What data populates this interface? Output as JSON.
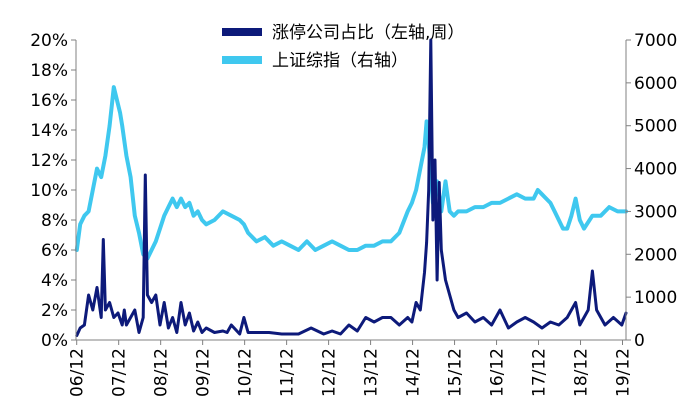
{
  "chart_data": {
    "type": "line",
    "title": "",
    "xlabel": "",
    "x_ticks": [
      "06/12",
      "07/12",
      "08/12",
      "09/12",
      "10/12",
      "11/12",
      "12/12",
      "13/12",
      "14/12",
      "15/12",
      "16/12",
      "17/12",
      "18/12",
      "19/12"
    ],
    "x_range": [
      2006.9,
      2020.0
    ],
    "y_left": {
      "label": "",
      "range": [
        0,
        20
      ],
      "ticks": [
        0,
        2,
        4,
        6,
        8,
        10,
        12,
        14,
        16,
        18,
        20
      ],
      "tick_labels": [
        "0%",
        "2%",
        "4%",
        "6%",
        "8%",
        "10%",
        "12%",
        "14%",
        "16%",
        "18%",
        "20%"
      ]
    },
    "y_right": {
      "label": "",
      "range": [
        0,
        7000
      ],
      "ticks": [
        0,
        1000,
        2000,
        3000,
        4000,
        5000,
        6000,
        7000
      ],
      "tick_labels": [
        "0",
        "1000",
        "2000",
        "3000",
        "4000",
        "5000",
        "6000",
        "7000"
      ]
    },
    "legend_position": "top-center",
    "series": [
      {
        "name": "涨停公司占比（左轴,周）",
        "axis": "left",
        "color": "#0d1a7a",
        "x": [
          2006.92,
          2007.0,
          2007.1,
          2007.2,
          2007.3,
          2007.4,
          2007.5,
          2007.55,
          2007.6,
          2007.7,
          2007.8,
          2007.9,
          2008.0,
          2008.05,
          2008.1,
          2008.2,
          2008.3,
          2008.4,
          2008.5,
          2008.55,
          2008.6,
          2008.7,
          2008.8,
          2008.9,
          2009.0,
          2009.1,
          2009.2,
          2009.3,
          2009.4,
          2009.5,
          2009.6,
          2009.7,
          2009.8,
          2009.9,
          2010.0,
          2010.2,
          2010.4,
          2010.5,
          2010.6,
          2010.8,
          2010.9,
          2011.0,
          2011.2,
          2011.5,
          2011.8,
          2012.0,
          2012.2,
          2012.5,
          2012.8,
          2013.0,
          2013.2,
          2013.4,
          2013.6,
          2013.8,
          2014.0,
          2014.2,
          2014.4,
          2014.6,
          2014.8,
          2014.9,
          2015.0,
          2015.1,
          2015.2,
          2015.25,
          2015.3,
          2015.35,
          2015.4,
          2015.45,
          2015.5,
          2015.55,
          2015.6,
          2015.7,
          2015.8,
          2015.9,
          2016.0,
          2016.2,
          2016.4,
          2016.6,
          2016.8,
          2017.0,
          2017.2,
          2017.4,
          2017.6,
          2017.8,
          2018.0,
          2018.2,
          2018.4,
          2018.6,
          2018.8,
          2018.9,
          2019.0,
          2019.1,
          2019.2,
          2019.3,
          2019.5,
          2019.7,
          2019.9,
          2020.0
        ],
        "values": [
          0.3,
          0.8,
          1.0,
          3.0,
          2.0,
          3.5,
          1.5,
          6.7,
          2.0,
          2.5,
          1.5,
          1.8,
          1.0,
          2.0,
          1.0,
          1.5,
          2.0,
          0.5,
          1.5,
          11.0,
          3.0,
          2.5,
          3.0,
          1.0,
          2.5,
          0.8,
          1.5,
          0.5,
          2.5,
          1.0,
          1.8,
          0.6,
          1.2,
          0.5,
          0.8,
          0.5,
          0.6,
          0.5,
          1.0,
          0.4,
          1.5,
          0.5,
          0.5,
          0.5,
          0.4,
          0.4,
          0.4,
          0.8,
          0.4,
          0.6,
          0.4,
          1.0,
          0.6,
          1.5,
          1.2,
          1.5,
          1.5,
          1.0,
          1.5,
          1.2,
          2.5,
          2.0,
          4.5,
          6.5,
          10.0,
          20.0,
          8.0,
          12.0,
          4.0,
          10.5,
          6.0,
          4.0,
          3.0,
          2.0,
          1.5,
          1.8,
          1.2,
          1.5,
          1.0,
          2.0,
          0.8,
          1.2,
          1.5,
          1.2,
          0.8,
          1.2,
          1.0,
          1.5,
          2.5,
          1.0,
          1.5,
          2.0,
          4.6,
          2.0,
          1.0,
          1.5,
          1.0,
          1.8
        ]
      },
      {
        "name": "上证综指（右轴）",
        "axis": "right",
        "color": "#3fc8ef",
        "x": [
          2006.92,
          2007.0,
          2007.1,
          2007.2,
          2007.3,
          2007.4,
          2007.5,
          2007.6,
          2007.7,
          2007.8,
          2007.9,
          2007.95,
          2008.0,
          2008.1,
          2008.2,
          2008.3,
          2008.4,
          2008.5,
          2008.6,
          2008.7,
          2008.8,
          2008.9,
          2009.0,
          2009.1,
          2009.2,
          2009.3,
          2009.4,
          2009.5,
          2009.6,
          2009.7,
          2009.8,
          2009.9,
          2010.0,
          2010.2,
          2010.4,
          2010.6,
          2010.8,
          2010.9,
          2011.0,
          2011.2,
          2011.4,
          2011.6,
          2011.8,
          2012.0,
          2012.2,
          2012.4,
          2012.6,
          2012.8,
          2013.0,
          2013.2,
          2013.4,
          2013.6,
          2013.8,
          2014.0,
          2014.2,
          2014.4,
          2014.6,
          2014.8,
          2014.9,
          2015.0,
          2015.1,
          2015.2,
          2015.25,
          2015.3,
          2015.35,
          2015.4,
          2015.5,
          2015.6,
          2015.7,
          2015.8,
          2015.9,
          2016.0,
          2016.2,
          2016.4,
          2016.6,
          2016.8,
          2017.0,
          2017.2,
          2017.4,
          2017.6,
          2017.8,
          2017.9,
          2018.0,
          2018.1,
          2018.2,
          2018.3,
          2018.4,
          2018.5,
          2018.6,
          2018.7,
          2018.8,
          2018.9,
          2019.0,
          2019.2,
          2019.4,
          2019.6,
          2019.8,
          2020.0
        ],
        "values": [
          2100,
          2700,
          2900,
          3000,
          3500,
          4000,
          3800,
          4300,
          5000,
          5900,
          5500,
          5300,
          5000,
          4300,
          3800,
          2900,
          2500,
          2000,
          1900,
          2100,
          2300,
          2600,
          2900,
          3100,
          3300,
          3100,
          3300,
          3100,
          3200,
          2900,
          3000,
          2800,
          2700,
          2800,
          3000,
          2900,
          2800,
          2700,
          2500,
          2300,
          2400,
          2200,
          2300,
          2200,
          2100,
          2300,
          2100,
          2200,
          2300,
          2200,
          2100,
          2100,
          2200,
          2200,
          2300,
          2300,
          2500,
          3000,
          3200,
          3500,
          4000,
          4500,
          5100,
          4600,
          3900,
          3200,
          3700,
          3000,
          3700,
          3000,
          2900,
          3000,
          3000,
          3100,
          3100,
          3200,
          3200,
          3300,
          3400,
          3300,
          3300,
          3500,
          3400,
          3300,
          3200,
          3000,
          2800,
          2600,
          2600,
          2900,
          3300,
          2800,
          2600,
          2900,
          2900,
          3100,
          3000,
          3000
        ]
      }
    ]
  }
}
